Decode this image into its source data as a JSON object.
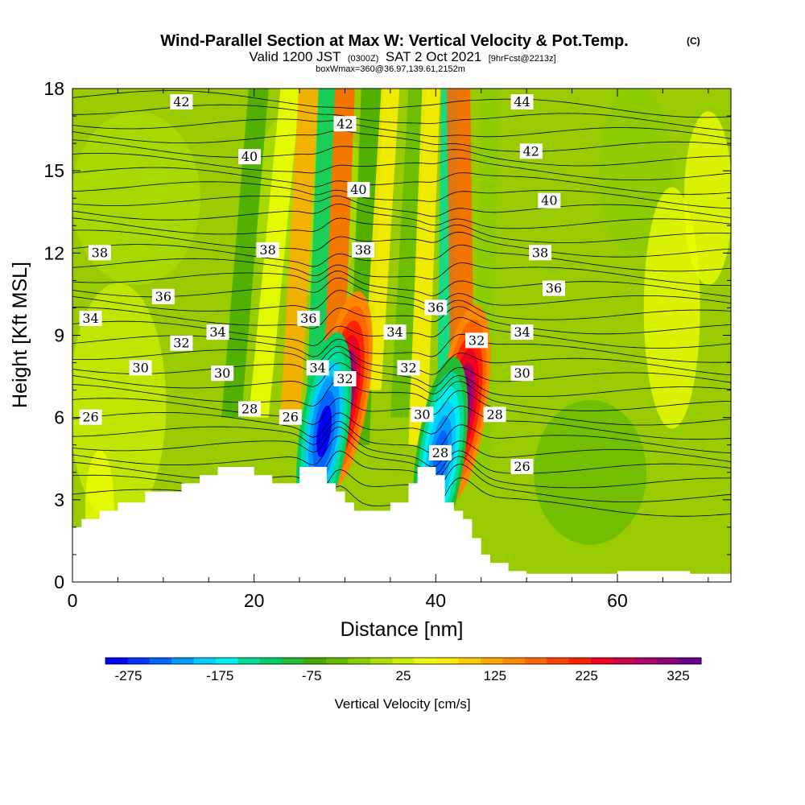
{
  "chart_data": {
    "type": "heatmap",
    "title": "Wind-Parallel Section at Max W: Vertical Velocity & Pot.Temp.",
    "title_suffix": "(C)",
    "subtitle_parts": [
      "Valid 1200 JST",
      "(0300Z)",
      "SAT 2 Oct 2021",
      "[9hrFcst@2213z]"
    ],
    "subtitle2": "boxWmax=360@36.97,139.61,2152m",
    "xlabel": "Distance [nm]",
    "ylabel": "Height [Kft MSL]",
    "xlim": [
      0,
      72.5
    ],
    "ylim": [
      0,
      18
    ],
    "x_ticks": [
      0,
      20,
      40,
      60
    ],
    "y_ticks": [
      0,
      3,
      6,
      9,
      12,
      15,
      18
    ],
    "grid": false,
    "colorbar": {
      "label": "Vertical Velocity [cm/s]",
      "tick_labels": [
        "-275",
        "-175",
        "-75",
        "25",
        "125",
        "225",
        "325"
      ],
      "tick_values": [
        -275,
        -175,
        -75,
        25,
        125,
        225,
        325
      ],
      "range": [
        -300,
        350
      ],
      "colors": [
        "#0000ff",
        "#0033ff",
        "#0066ff",
        "#0099ff",
        "#00ccff",
        "#00eeee",
        "#00dd99",
        "#00cc66",
        "#22bb33",
        "#44aa00",
        "#66bb00",
        "#88cc00",
        "#aadd00",
        "#ccee00",
        "#eeff00",
        "#ffee00",
        "#ffcc00",
        "#ffaa00",
        "#ff8800",
        "#ff6600",
        "#ff4400",
        "#ff2200",
        "#ee0022",
        "#cc0044",
        "#aa0066",
        "#880077",
        "#660088"
      ]
    },
    "terrain_kft": [
      [
        0,
        2.0
      ],
      [
        1,
        2.0
      ],
      [
        1,
        2.3
      ],
      [
        3,
        2.3
      ],
      [
        3,
        2.6
      ],
      [
        5,
        2.6
      ],
      [
        5,
        2.9
      ],
      [
        8,
        2.9
      ],
      [
        8,
        3.3
      ],
      [
        12,
        3.3
      ],
      [
        12,
        3.6
      ],
      [
        14,
        3.6
      ],
      [
        14,
        3.9
      ],
      [
        16,
        3.9
      ],
      [
        16,
        4.2
      ],
      [
        20,
        4.2
      ],
      [
        20,
        3.9
      ],
      [
        22,
        3.9
      ],
      [
        22,
        3.6
      ],
      [
        25,
        3.6
      ],
      [
        25,
        4.2
      ],
      [
        28,
        4.2
      ],
      [
        28,
        3.6
      ],
      [
        29,
        3.6
      ],
      [
        29,
        3.3
      ],
      [
        30,
        3.3
      ],
      [
        30,
        2.9
      ],
      [
        31,
        2.9
      ],
      [
        31,
        2.6
      ],
      [
        35,
        2.6
      ],
      [
        35,
        2.9
      ],
      [
        37,
        2.9
      ],
      [
        37,
        3.6
      ],
      [
        38,
        3.6
      ],
      [
        38,
        4.2
      ],
      [
        40,
        4.2
      ],
      [
        40,
        3.9
      ],
      [
        41,
        3.9
      ],
      [
        41,
        2.9
      ],
      [
        42,
        2.9
      ],
      [
        42,
        2.6
      ],
      [
        43,
        2.6
      ],
      [
        43,
        2.3
      ],
      [
        44,
        2.3
      ],
      [
        44,
        1.6
      ],
      [
        45,
        1.6
      ],
      [
        45,
        1.0
      ],
      [
        46,
        1.0
      ],
      [
        46,
        0.7
      ],
      [
        48,
        0.7
      ],
      [
        48,
        0.4
      ],
      [
        50,
        0.4
      ],
      [
        50,
        0.3
      ],
      [
        60,
        0.3
      ],
      [
        60,
        0.4
      ],
      [
        68,
        0.4
      ],
      [
        68,
        0.3
      ],
      [
        72.5,
        0.3
      ]
    ],
    "w_maxima": [
      {
        "x": 30,
        "z": 7.0,
        "w": 330
      },
      {
        "x": 43,
        "z": 6.5,
        "w": 320
      },
      {
        "x": 27.7,
        "z": 5.5,
        "w": -280
      },
      {
        "x": 40.5,
        "z": 4.6,
        "w": -250
      }
    ],
    "theta_contour_labels": [
      {
        "x": 12,
        "z": 17.5,
        "text": "42"
      },
      {
        "x": 30,
        "z": 16.7,
        "text": "42"
      },
      {
        "x": 49.5,
        "z": 17.5,
        "text": "44"
      },
      {
        "x": 50.5,
        "z": 15.7,
        "text": "42"
      },
      {
        "x": 19.5,
        "z": 15.5,
        "text": "40"
      },
      {
        "x": 31.5,
        "z": 14.3,
        "text": "40"
      },
      {
        "x": 52.5,
        "z": 13.9,
        "text": "40"
      },
      {
        "x": 3,
        "z": 12.0,
        "text": "38"
      },
      {
        "x": 21.5,
        "z": 12.1,
        "text": "38"
      },
      {
        "x": 32,
        "z": 12.1,
        "text": "38"
      },
      {
        "x": 51.5,
        "z": 12.0,
        "text": "38"
      },
      {
        "x": 10,
        "z": 10.4,
        "text": "36"
      },
      {
        "x": 26,
        "z": 9.6,
        "text": "36"
      },
      {
        "x": 40,
        "z": 10.0,
        "text": "36"
      },
      {
        "x": 53,
        "z": 10.7,
        "text": "36"
      },
      {
        "x": 2,
        "z": 9.6,
        "text": "34"
      },
      {
        "x": 16,
        "z": 9.1,
        "text": "34"
      },
      {
        "x": 35.5,
        "z": 9.1,
        "text": "34"
      },
      {
        "x": 49.5,
        "z": 9.1,
        "text": "34"
      },
      {
        "x": 12,
        "z": 8.7,
        "text": "32"
      },
      {
        "x": 30,
        "z": 7.4,
        "text": "32"
      },
      {
        "x": 37,
        "z": 7.8,
        "text": "32"
      },
      {
        "x": 44.5,
        "z": 8.8,
        "text": "32"
      },
      {
        "x": 7.5,
        "z": 7.8,
        "text": "30"
      },
      {
        "x": 16.5,
        "z": 7.6,
        "text": "30"
      },
      {
        "x": 38.5,
        "z": 6.1,
        "text": "30"
      },
      {
        "x": 49.5,
        "z": 7.6,
        "text": "30"
      },
      {
        "x": 27,
        "z": 7.8,
        "text": "34"
      },
      {
        "x": 19.5,
        "z": 6.3,
        "text": "28"
      },
      {
        "x": 40.5,
        "z": 4.7,
        "text": "28"
      },
      {
        "x": 46.5,
        "z": 6.1,
        "text": "28"
      },
      {
        "x": 2,
        "z": 6.0,
        "text": "26"
      },
      {
        "x": 24,
        "z": 6.0,
        "text": "26"
      },
      {
        "x": 49.5,
        "z": 4.2,
        "text": "26"
      }
    ]
  }
}
